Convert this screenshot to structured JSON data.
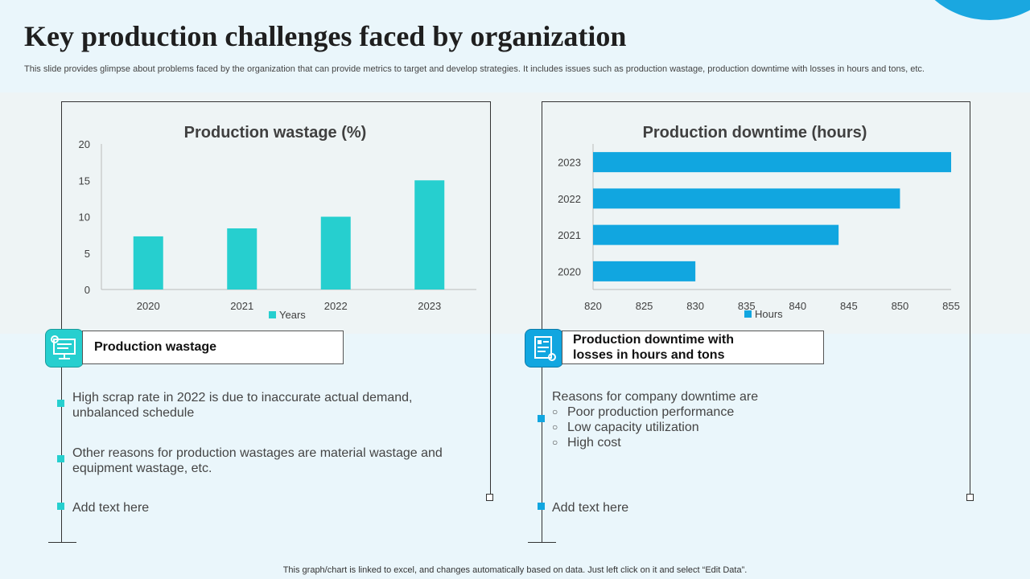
{
  "title": "Key production challenges faced by organization",
  "subtitle": "This slide provides glimpse about problems faced by the organization that can provide metrics to target and develop strategies. It includes issues such as production wastage, production downtime with losses in hours and tons, etc.",
  "colors": {
    "teal": "#26cfcf",
    "blue": "#11a6e0",
    "corner": "#1aa7e0"
  },
  "chart_data": [
    {
      "type": "bar",
      "title": "Production wastage (%)",
      "categories": [
        "2020",
        "2021",
        "2022",
        "2023"
      ],
      "values": [
        7.3,
        8.4,
        10,
        15
      ],
      "ylim": [
        0,
        20
      ],
      "yticks": [
        0,
        5,
        10,
        15,
        20
      ],
      "legend": "Years",
      "xlabel": "",
      "ylabel": ""
    },
    {
      "type": "bar",
      "orientation": "horizontal",
      "title": "Production downtime (hours)",
      "categories": [
        "2020",
        "2021",
        "2022",
        "2023"
      ],
      "values": [
        830,
        844,
        850,
        855
      ],
      "xlim": [
        820,
        855
      ],
      "xticks": [
        820,
        825,
        830,
        835,
        840,
        845,
        850,
        855
      ],
      "legend": "Hours",
      "xlabel": "",
      "ylabel": ""
    }
  ],
  "left": {
    "icon": "presentation-icon",
    "label": "Production wastage",
    "bullets": [
      "High scrap rate in 2022 is due to inaccurate actual demand, unbalanced schedule",
      "Other reasons for production wastages are material wastage and equipment wastage, etc.",
      "Add text here"
    ]
  },
  "right": {
    "icon": "checklist-icon",
    "label": "Production downtime with losses in hours and tons",
    "intro": "Reasons for company downtime are",
    "subitems": [
      "Poor production performance",
      "Low capacity utilization",
      "High cost"
    ],
    "add_text": "Add text here"
  },
  "footer": "This graph/chart is linked to excel,  and changes automatically based on data. Just left click on it and select “Edit Data”."
}
